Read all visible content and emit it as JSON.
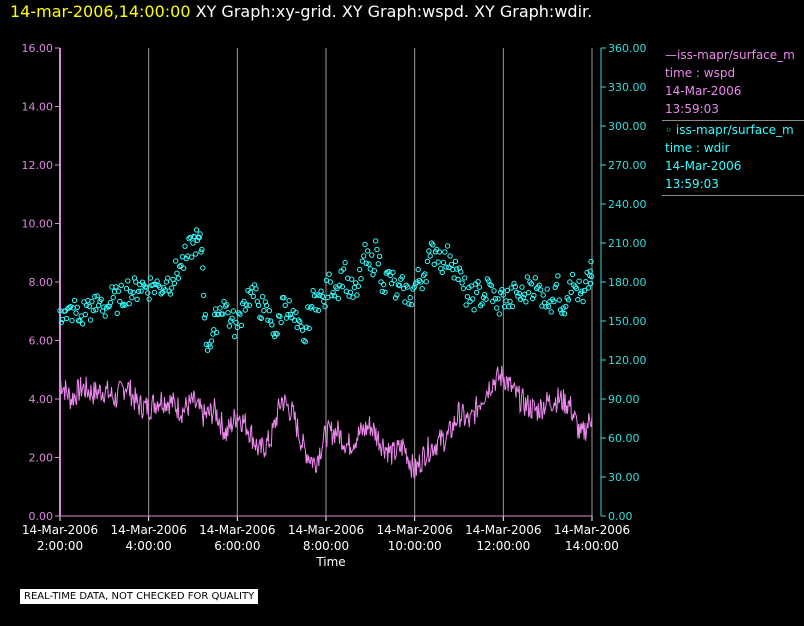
{
  "title": {
    "timestamp": "14-mar-2006,14:00:00",
    "graphs": "XY Graph:xy-grid.  XY Graph:wspd.  XY Graph:wdir."
  },
  "colors": {
    "background": "#000000",
    "axis_left": "#dd88dd",
    "axis_right": "#33dddd",
    "wspd": "#ee88ee",
    "wdir": "#33ffff",
    "grid": "#9a9a9a",
    "text": "#ffffff"
  },
  "legend": [
    {
      "label": "—iss-mapr/surface_m",
      "lines": [
        "time : wspd",
        "14-Mar-2006",
        "13:59:03"
      ],
      "color": "#ee88ee"
    },
    {
      "label": "◦ iss-mapr/surface_m",
      "lines": [
        "time : wdir",
        "14-Mar-2006",
        "13:59:03"
      ],
      "color": "#33ffff"
    }
  ],
  "quality_note": "REAL-TIME DATA, NOT CHECKED FOR QUALITY",
  "chart_data": {
    "type": "line",
    "xlabel": "Time",
    "x_range_hours": [
      2.0,
      14.0
    ],
    "x_ticks": [
      {
        "h": 2,
        "date": "14-Mar-2006",
        "time": "2:00:00"
      },
      {
        "h": 4,
        "date": "14-Mar-2006",
        "time": "4:00:00"
      },
      {
        "h": 6,
        "date": "14-Mar-2006",
        "time": "6:00:00"
      },
      {
        "h": 8,
        "date": "14-Mar-2006",
        "time": "8:00:00"
      },
      {
        "h": 10,
        "date": "14-Mar-2006",
        "time": "10:00:00"
      },
      {
        "h": 12,
        "date": "14-Mar-2006",
        "time": "12:00:00"
      },
      {
        "h": 14,
        "date": "14-Mar-2006",
        "time": "14:00:00"
      }
    ],
    "y_left": {
      "name": "wspd",
      "range": [
        0,
        16
      ],
      "ticks": [
        "0.00",
        "2.00",
        "4.00",
        "6.00",
        "8.00",
        "10.00",
        "12.00",
        "14.00",
        "16.00"
      ]
    },
    "y_right": {
      "name": "wdir",
      "range": [
        0,
        360
      ],
      "ticks": [
        "0.00",
        "30.00",
        "60.00",
        "90.00",
        "120.00",
        "150.00",
        "180.00",
        "210.00",
        "240.00",
        "270.00",
        "300.00",
        "330.00",
        "360.00"
      ]
    },
    "series": [
      {
        "name": "wspd",
        "style": "line",
        "axis": "left",
        "x": [
          2.0,
          2.25,
          2.5,
          2.75,
          3.0,
          3.25,
          3.5,
          3.75,
          4.0,
          4.25,
          4.5,
          4.75,
          5.0,
          5.25,
          5.5,
          5.75,
          6.0,
          6.25,
          6.5,
          6.75,
          7.0,
          7.25,
          7.5,
          7.75,
          8.0,
          8.25,
          8.5,
          8.75,
          9.0,
          9.25,
          9.5,
          9.75,
          10.0,
          10.25,
          10.5,
          10.75,
          11.0,
          11.25,
          11.5,
          11.75,
          12.0,
          12.25,
          12.5,
          12.75,
          13.0,
          13.25,
          13.5,
          13.75,
          14.0
        ],
        "y": [
          4.6,
          4.0,
          4.4,
          4.2,
          4.3,
          4.0,
          4.5,
          3.8,
          3.7,
          4.0,
          3.9,
          3.6,
          3.9,
          3.4,
          3.6,
          2.8,
          3.5,
          3.0,
          2.2,
          2.6,
          4.0,
          3.5,
          2.3,
          1.8,
          2.8,
          2.9,
          2.4,
          2.8,
          3.1,
          2.5,
          2.1,
          2.4,
          1.5,
          2.2,
          2.5,
          2.7,
          3.5,
          3.2,
          4.0,
          4.6,
          4.8,
          4.2,
          3.8,
          3.6,
          3.9,
          4.0,
          3.8,
          2.7,
          3.4
        ]
      },
      {
        "name": "wdir",
        "style": "circles",
        "axis": "right",
        "x": [
          2.0,
          2.15,
          2.3,
          2.45,
          2.6,
          2.75,
          2.9,
          3.05,
          3.2,
          3.35,
          3.5,
          3.65,
          3.8,
          3.95,
          4.1,
          4.25,
          4.4,
          4.55,
          4.7,
          4.85,
          5.0,
          5.1,
          5.2,
          5.3,
          5.45,
          5.55,
          5.7,
          5.85,
          6.0,
          6.15,
          6.3,
          6.45,
          6.6,
          6.75,
          6.9,
          7.05,
          7.2,
          7.35,
          7.5,
          7.65,
          7.8,
          7.95,
          8.1,
          8.25,
          8.4,
          8.55,
          8.7,
          8.85,
          9.0,
          9.15,
          9.3,
          9.45,
          9.6,
          9.75,
          9.9,
          10.05,
          10.2,
          10.35,
          10.5,
          10.65,
          10.8,
          10.95,
          11.1,
          11.25,
          11.4,
          11.55,
          11.7,
          11.85,
          12.0,
          12.15,
          12.3,
          12.45,
          12.6,
          12.75,
          12.9,
          13.05,
          13.2,
          13.35,
          13.5,
          13.65,
          13.8,
          13.95
        ],
        "y": [
          158,
          152,
          160,
          150,
          162,
          158,
          165,
          160,
          168,
          165,
          175,
          172,
          178,
          176,
          178,
          176,
          180,
          182,
          192,
          198,
          210,
          212,
          205,
          132,
          140,
          155,
          165,
          150,
          145,
          165,
          172,
          165,
          158,
          150,
          140,
          168,
          155,
          145,
          135,
          160,
          170,
          165,
          180,
          175,
          190,
          172,
          170,
          200,
          190,
          205,
          178,
          185,
          170,
          175,
          168,
          180,
          185,
          200,
          205,
          195,
          200,
          190,
          175,
          165,
          172,
          168,
          178,
          160,
          170,
          165,
          172,
          168,
          180,
          175,
          170,
          165,
          178,
          160,
          180,
          175,
          165,
          185
        ]
      }
    ]
  }
}
